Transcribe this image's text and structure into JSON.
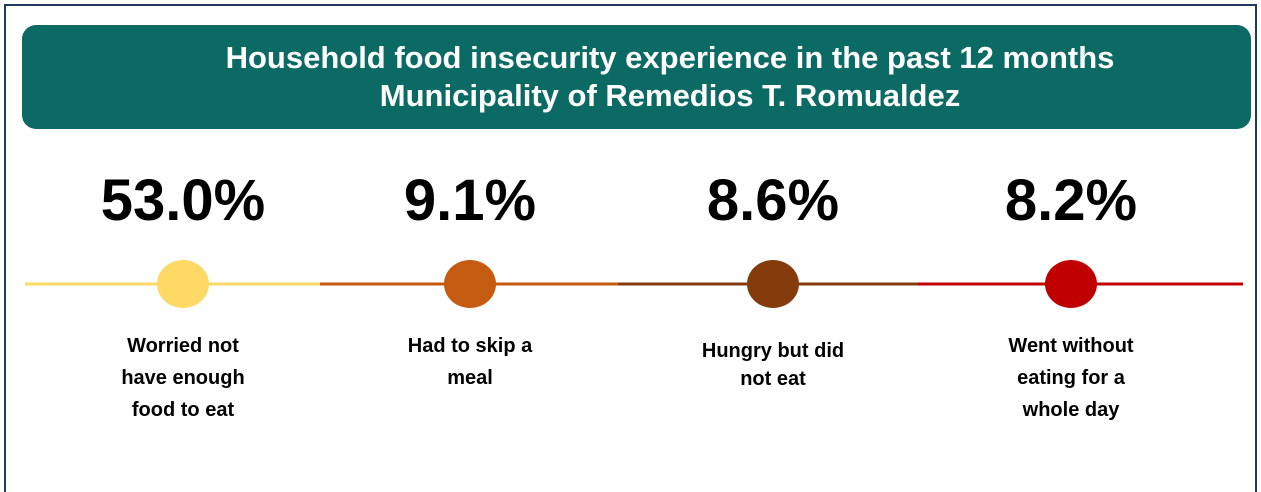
{
  "header": {
    "title": "Household food insecurity experience in the past 12 months",
    "subtitle": "Municipality of Remedios T. Romualdez"
  },
  "items": [
    {
      "value": "53.0%",
      "label": [
        "Worried not",
        "have enough",
        "food to eat"
      ],
      "color": "#ffd966"
    },
    {
      "value": "9.1%",
      "label": [
        "Had to skip a",
        "meal"
      ],
      "color": "#c55a11"
    },
    {
      "value": "8.6%",
      "label": [
        "Hungry but did",
        "not eat"
      ],
      "color": "#843c0c"
    },
    {
      "value": "8.2%",
      "label": [
        "Went without",
        "eating for a",
        "whole day"
      ],
      "color": "#c00000"
    }
  ]
}
